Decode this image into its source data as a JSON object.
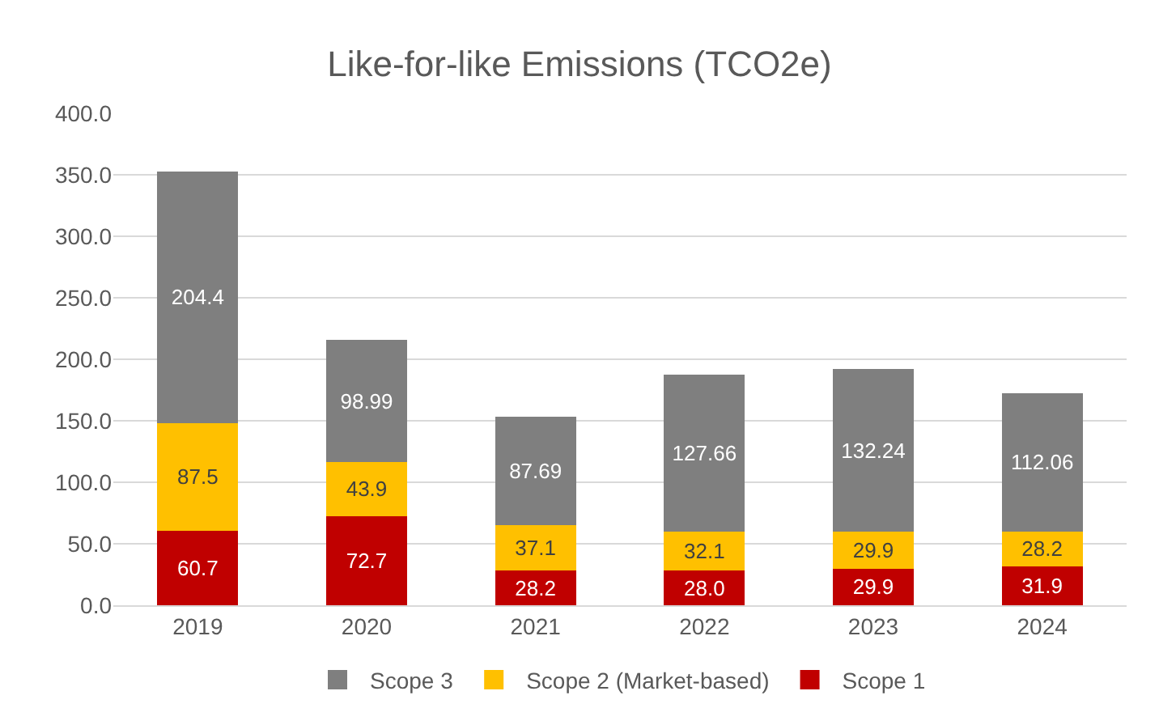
{
  "chart_data": {
    "type": "bar",
    "title": "Like-for-like Emissions (TCO2e)",
    "stacked": true,
    "categories": [
      "2019",
      "2020",
      "2021",
      "2022",
      "2023",
      "2024"
    ],
    "series": [
      {
        "name": "Scope 1",
        "color": "#c00000",
        "values": [
          60.7,
          72.7,
          28.2,
          28.0,
          29.9,
          31.9
        ],
        "value_labels": [
          "60.7",
          "72.7",
          "28.2",
          "28.0",
          "29.9",
          "31.9"
        ]
      },
      {
        "name": "Scope 2 (Market-based)",
        "color": "#ffc000",
        "values": [
          87.5,
          43.9,
          37.1,
          32.1,
          29.9,
          28.2
        ],
        "value_labels": [
          "87.5",
          "43.9",
          "37.1",
          "32.1",
          "29.9",
          "28.2"
        ]
      },
      {
        "name": "Scope 3",
        "color": "#7f7f7f",
        "values": [
          204.4,
          98.99,
          87.69,
          127.66,
          132.24,
          112.06
        ],
        "value_labels": [
          "204.4",
          "98.99",
          "87.69",
          "127.66",
          "132.24",
          "112.06"
        ]
      }
    ],
    "ylim": [
      0,
      400
    ],
    "yticks": [
      {
        "value": 0,
        "label": "0.0"
      },
      {
        "value": 50,
        "label": "50.0"
      },
      {
        "value": 100,
        "label": "100.0"
      },
      {
        "value": 150,
        "label": "150.0"
      },
      {
        "value": 200,
        "label": "200.0"
      },
      {
        "value": 250,
        "label": "250.0"
      },
      {
        "value": 300,
        "label": "300.0"
      },
      {
        "value": 350,
        "label": "350.0"
      },
      {
        "value": 400,
        "label": "400.0"
      }
    ],
    "grid": "y",
    "legend": "bottom"
  }
}
